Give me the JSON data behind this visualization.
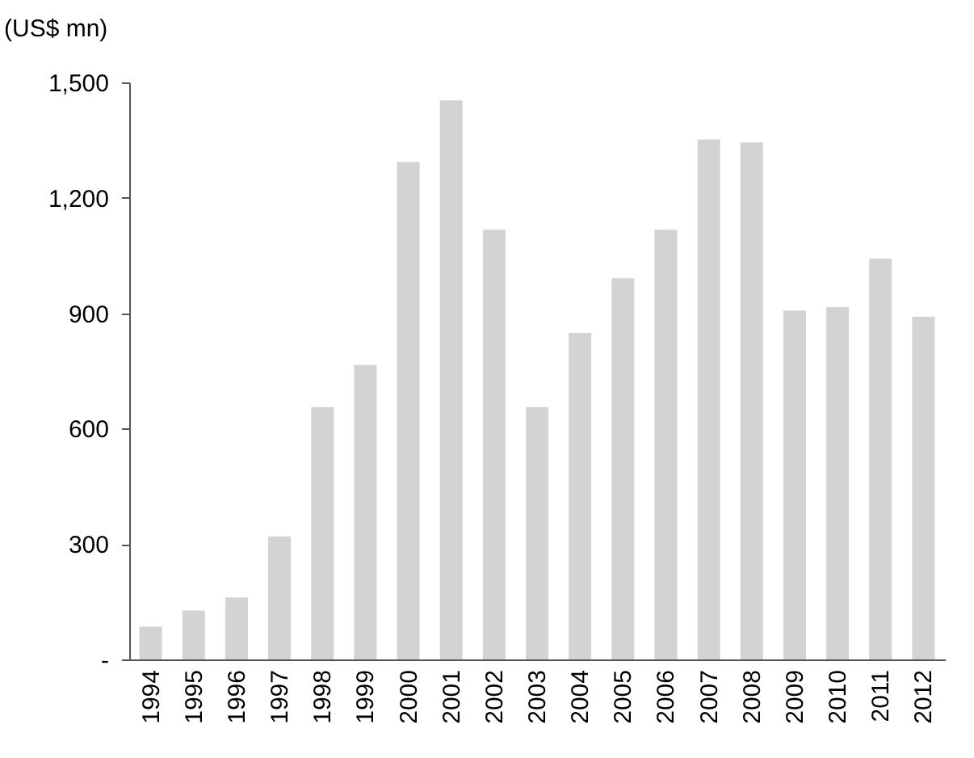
{
  "chart_data": {
    "type": "bar",
    "ylabel": "(US$ mn)",
    "categories": [
      "1994",
      "1995",
      "1996",
      "1997",
      "1998",
      "1999",
      "2000",
      "2001",
      "2002",
      "2003",
      "2004",
      "2005",
      "2006",
      "2007",
      "2008",
      "2009",
      "2010",
      "2011",
      "2012"
    ],
    "values": [
      85,
      127,
      161,
      320,
      656,
      765,
      1293,
      1453,
      1117,
      656,
      849,
      991,
      1117,
      1352,
      1344,
      907,
      916,
      1042,
      891
    ],
    "color": "#d3d3d3",
    "ylim": [
      0,
      1500
    ],
    "yticks": [
      {
        "value": 0,
        "label": "-"
      },
      {
        "value": 300,
        "label": "300"
      },
      {
        "value": 600,
        "label": "600"
      },
      {
        "value": 900,
        "label": "900"
      },
      {
        "value": 1200,
        "label": "1,200"
      },
      {
        "value": 1500,
        "label": "1,500"
      }
    ],
    "grid": false
  }
}
